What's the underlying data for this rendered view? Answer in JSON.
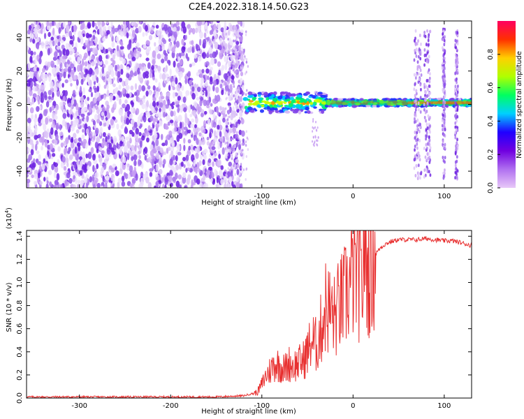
{
  "figure": {
    "title": "C2E4.2022.318.14.50.G23"
  },
  "chart_data": [
    {
      "type": "heatmap",
      "xlabel": "Height of straight line (km)",
      "ylabel": "Frequency (Hz)",
      "xlim": [
        -358,
        130
      ],
      "ylim": [
        -50,
        50
      ],
      "xticks": [
        "-300",
        "-200",
        "-100",
        "0",
        "100"
      ],
      "xtick_values": [
        -300,
        -200,
        -100,
        0,
        100
      ],
      "yticks": [
        "-40",
        "-20",
        "0",
        "20",
        "40"
      ],
      "ytick_values": [
        -40,
        -20,
        0,
        20,
        40
      ],
      "colorbar": {
        "label": "Normalized spectral amplitude",
        "range": [
          0,
          1
        ],
        "ticks": [
          "0.0",
          "0.2",
          "0.4",
          "0.6",
          "0.8"
        ],
        "tick_values": [
          0,
          0.2,
          0.4,
          0.6,
          0.8
        ],
        "colors": [
          "#e8c8f8",
          "#b070f0",
          "#7000e0",
          "#2000ff",
          "#00d0ff",
          "#00ff60",
          "#b0ff00",
          "#ffd000",
          "#ff3000",
          "#ff0060"
        ]
      },
      "regions": [
        {
          "description_x": [
            -358,
            -120
          ],
          "freq_range": [
            -50,
            50
          ],
          "level": "low-noise"
        },
        {
          "description_x": [
            -120,
            130
          ],
          "freq_center": 1,
          "level": "narrow-band-high"
        },
        {
          "description_x": [
            65,
            120
          ],
          "freq_range": [
            -45,
            45
          ],
          "level": "vertical-streaks"
        }
      ]
    },
    {
      "type": "line",
      "xlabel": "Height of straight line (km)",
      "ylabel": "SNR (10 * v/v)",
      "scale_label": "(x10",
      "scale_exp": "4",
      "scale_close": ")",
      "xlim": [
        -358,
        130
      ],
      "ylim": [
        0,
        1.45
      ],
      "xticks": [
        "-300",
        "-200",
        "-100",
        "0",
        "100"
      ],
      "xtick_values": [
        -300,
        -200,
        -100,
        0,
        100
      ],
      "yticks": [
        "0.0",
        "0.2",
        "0.4",
        "0.6",
        "0.8",
        "1.0",
        "1.2",
        "1.4"
      ],
      "ytick_values": [
        0,
        0.2,
        0.4,
        0.6,
        0.8,
        1.0,
        1.2,
        1.4
      ],
      "line_color": "#e83030",
      "series": [
        {
          "x": [
            -358,
            -300,
            -250,
            -200,
            -150,
            -120,
            -105,
            -100,
            -95,
            -90,
            -85,
            -80,
            -75,
            -70,
            -65,
            -60,
            -55,
            -50,
            -45,
            -40,
            -35,
            -30,
            -25,
            -20,
            -15,
            -10,
            -5,
            0,
            5,
            10,
            12,
            15,
            20,
            25,
            30,
            35,
            40,
            50,
            60,
            70,
            80,
            90,
            100,
            110,
            120,
            130
          ],
          "y": [
            0.01,
            0.01,
            0.01,
            0.01,
            0.01,
            0.02,
            0.05,
            0.12,
            0.2,
            0.25,
            0.3,
            0.28,
            0.25,
            0.3,
            0.28,
            0.3,
            0.32,
            0.4,
            0.5,
            0.45,
            0.6,
            0.8,
            0.75,
            0.7,
            0.8,
            0.85,
            0.95,
            1.05,
            1.1,
            0.9,
            1.45,
            1.1,
            1.15,
            1.25,
            1.3,
            1.33,
            1.35,
            1.37,
            1.37,
            1.37,
            1.38,
            1.37,
            1.36,
            1.36,
            1.34,
            1.32
          ]
        }
      ]
    }
  ]
}
